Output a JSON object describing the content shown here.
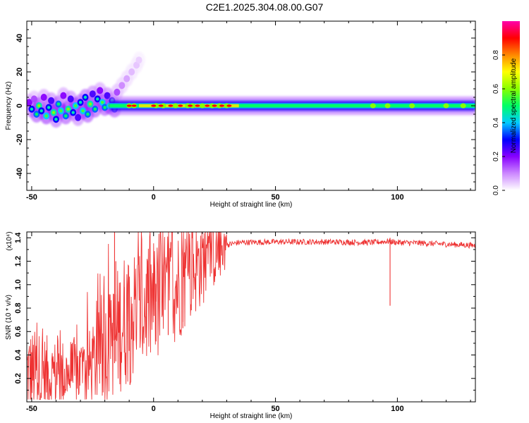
{
  "title": "C2E1.2025.304.08.00.G07",
  "chart_data": [
    {
      "type": "heatmap",
      "title": "C2E1.2025.304.08.00.G07",
      "xlabel": "Height of straight line (km)",
      "ylabel": "Frequency (Hz)",
      "xlim": [
        -52,
        132
      ],
      "ylim": [
        -50,
        50
      ],
      "xticks": [
        -50,
        0,
        50,
        100
      ],
      "xtick_labels": [
        "-50",
        "0",
        "50",
        "100"
      ],
      "yticks": [
        -40,
        -20,
        0,
        20,
        40
      ],
      "ytick_labels": [
        "-40",
        "-20",
        "0",
        "20",
        "40"
      ],
      "colorbar": {
        "label": "Normalized spectral amplitude",
        "range": [
          0.0,
          1.0
        ],
        "ticks": [
          0.0,
          0.2,
          0.4,
          0.6,
          0.8
        ],
        "tick_labels": [
          "0.0",
          "0.2",
          "0.4",
          "0.6",
          "0.8"
        ],
        "colors": [
          "#ffffff",
          "#cc88ff",
          "#8800ff",
          "#0000ff",
          "#00ccff",
          "#00ff66",
          "#88ff00",
          "#ffff00",
          "#ff8800",
          "#ff0000",
          "#ff00aa"
        ]
      },
      "band": {
        "start_km": -18,
        "end_km": 132,
        "center_hz": 0,
        "core_halfwidth_hz": 1.0,
        "glow_halfwidth_hz": 5.5,
        "core_intensity": 0.5,
        "hot_spots_km": [
          -10,
          -8,
          0,
          3,
          7,
          11,
          15,
          18,
          22,
          25,
          28,
          31
        ],
        "bright_nodes_km": [
          -10,
          -8,
          1,
          4,
          9,
          14,
          16,
          20,
          24,
          27,
          30,
          90,
          96,
          106,
          120,
          127
        ]
      },
      "scatter_region": {
        "x_range_km": [
          -52,
          -12
        ],
        "y_range_hz": [
          -15,
          10
        ],
        "points": [
          {
            "x": -51,
            "y": 2,
            "v": 0.2
          },
          {
            "x": -50,
            "y": -2,
            "v": 0.3
          },
          {
            "x": -49,
            "y": 4,
            "v": 0.15
          },
          {
            "x": -48,
            "y": -5,
            "v": 0.35
          },
          {
            "x": -47,
            "y": 0,
            "v": 0.45
          },
          {
            "x": -46,
            "y": -3,
            "v": 0.3
          },
          {
            "x": -45,
            "y": 5,
            "v": 0.2
          },
          {
            "x": -44,
            "y": -6,
            "v": 0.4
          },
          {
            "x": -43,
            "y": -1,
            "v": 0.3
          },
          {
            "x": -42,
            "y": 3,
            "v": 0.25
          },
          {
            "x": -41,
            "y": -4,
            "v": 0.45
          },
          {
            "x": -40,
            "y": -8,
            "v": 0.3
          },
          {
            "x": -39,
            "y": 1,
            "v": 0.35
          },
          {
            "x": -38,
            "y": -3,
            "v": 0.4
          },
          {
            "x": -37,
            "y": 6,
            "v": 0.2
          },
          {
            "x": -36,
            "y": -6,
            "v": 0.35
          },
          {
            "x": -35,
            "y": -2,
            "v": 0.45
          },
          {
            "x": -34,
            "y": 4,
            "v": 0.25
          },
          {
            "x": -33,
            "y": -4,
            "v": 0.3
          },
          {
            "x": -32,
            "y": 0,
            "v": 0.4
          },
          {
            "x": -31,
            "y": -7,
            "v": 0.25
          },
          {
            "x": -30,
            "y": 2,
            "v": 0.3
          },
          {
            "x": -29,
            "y": -3,
            "v": 0.4
          },
          {
            "x": -28,
            "y": 5,
            "v": 0.3
          },
          {
            "x": -27,
            "y": -5,
            "v": 0.35
          },
          {
            "x": -26,
            "y": 1,
            "v": 0.45
          },
          {
            "x": -25,
            "y": 7,
            "v": 0.25
          },
          {
            "x": -24,
            "y": -2,
            "v": 0.35
          },
          {
            "x": -23,
            "y": 4,
            "v": 0.3
          },
          {
            "x": -22,
            "y": 9,
            "v": 0.2
          },
          {
            "x": -21,
            "y": 2,
            "v": 0.4
          },
          {
            "x": -20,
            "y": -1,
            "v": 0.35
          },
          {
            "x": -19,
            "y": 6,
            "v": 0.25
          },
          {
            "x": -18,
            "y": 0,
            "v": 0.4
          },
          {
            "x": -17,
            "y": 3,
            "v": 0.3
          },
          {
            "x": -16,
            "y": -2,
            "v": 0.3
          },
          {
            "x": -15,
            "y": 8,
            "v": 0.15
          },
          {
            "x": -13,
            "y": 12,
            "v": 0.1
          },
          {
            "x": -11,
            "y": 16,
            "v": 0.08
          },
          {
            "x": -9,
            "y": 20,
            "v": 0.06
          },
          {
            "x": -7,
            "y": 24,
            "v": 0.05
          },
          {
            "x": -6,
            "y": 27,
            "v": 0.04
          }
        ]
      }
    },
    {
      "type": "line",
      "xlabel": "Height of straight line (km)",
      "ylabel": "SNR (10 * v/v)",
      "yscale_label": "(x10⁴)",
      "xlim": [
        -52,
        132
      ],
      "ylim": [
        0.0,
        1.45
      ],
      "xticks": [
        -50,
        0,
        50,
        100
      ],
      "xtick_labels": [
        "-50",
        "0",
        "50",
        "100"
      ],
      "yticks": [
        0.2,
        0.4,
        0.6,
        0.8,
        1.0,
        1.2,
        1.4
      ],
      "ytick_labels": [
        "0.2",
        "0.4",
        "0.6",
        "0.8",
        "1.0",
        "1.2",
        "1.4"
      ],
      "color": "#ee3333",
      "series": [
        {
          "name": "SNR",
          "envelope": {
            "x": [
              -52,
              -40,
              -30,
              -25,
              -20,
              -16,
              -15,
              -12,
              -8,
              -5,
              -2,
              0,
              3,
              6,
              10,
              15,
              20,
              25,
              30,
              35,
              50,
              70,
              90,
              96,
              100,
              110,
              120,
              132
            ],
            "y": [
              0.25,
              0.22,
              0.25,
              0.3,
              0.45,
              0.55,
              0.6,
              0.7,
              0.75,
              0.8,
              0.85,
              0.85,
              0.88,
              0.95,
              1.0,
              1.12,
              1.2,
              1.28,
              1.34,
              1.36,
              1.365,
              1.365,
              1.36,
              1.37,
              1.36,
              1.355,
              1.345,
              1.335
            ]
          },
          "spikes": [
            {
              "x": -16,
              "y": 1.45
            },
            {
              "x": -15.5,
              "y": 1.2
            },
            {
              "x": -12,
              "y": 0.98
            },
            {
              "x": -10,
              "y": 0.98
            },
            {
              "x": 6,
              "y": 1.29
            },
            {
              "x": 1,
              "y": 1.0
            },
            {
              "x": 12,
              "y": 1.12
            },
            {
              "x": 97,
              "y": 1.4
            }
          ]
        }
      ]
    }
  ]
}
